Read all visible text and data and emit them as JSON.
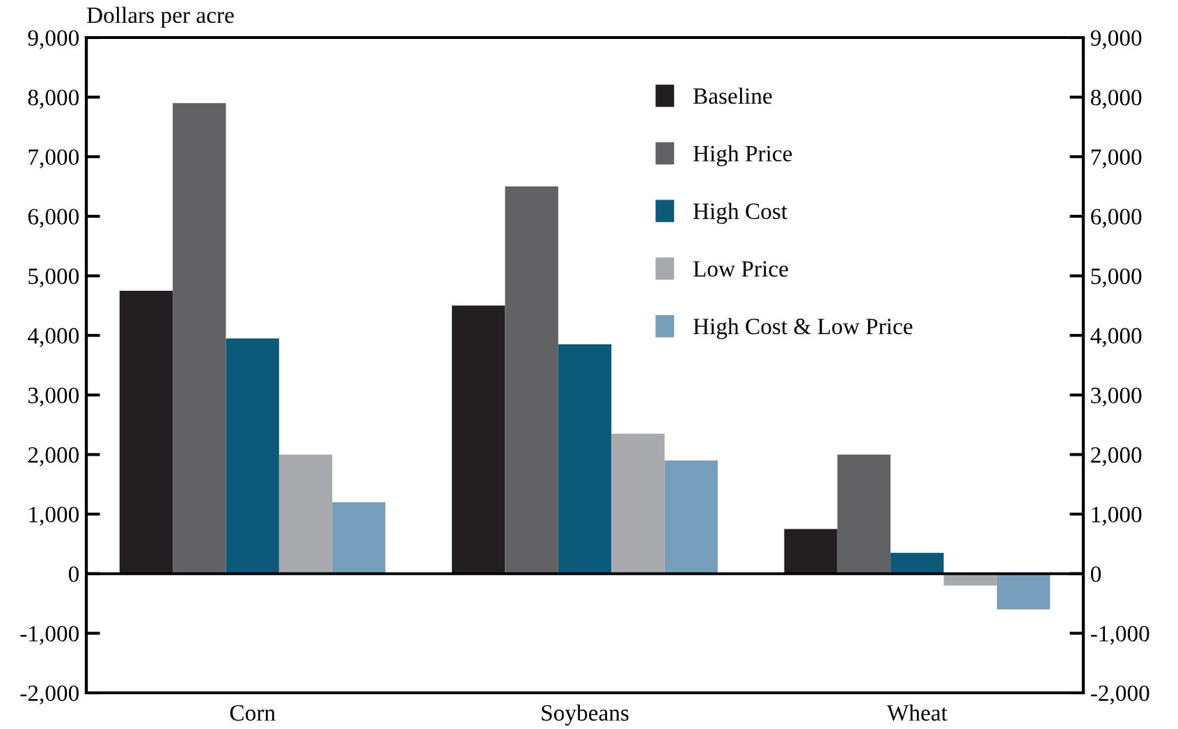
{
  "chart_data": {
    "type": "bar",
    "ylabel": "Dollars per acre",
    "categories": [
      "Corn",
      "Soybeans",
      "Wheat"
    ],
    "series": [
      {
        "name": "Baseline",
        "color": "#231f20",
        "values": [
          4750,
          4500,
          750
        ]
      },
      {
        "name": "High Price",
        "color": "#626264",
        "values": [
          7900,
          6500,
          2000
        ]
      },
      {
        "name": "High Cost",
        "color": "#0b5a7a",
        "values": [
          3950,
          3850,
          350
        ]
      },
      {
        "name": "Low Price",
        "color": "#a7a9ac",
        "values": [
          2000,
          2350,
          -200
        ]
      },
      {
        "name": "High Cost & Low Price",
        "color": "#779fbb",
        "values": [
          1200,
          1900,
          -600
        ]
      }
    ],
    "ylim": [
      -2000,
      9000
    ],
    "yticks": [
      {
        "value": -2000,
        "label": "-2,000"
      },
      {
        "value": -1000,
        "label": "-1,000"
      },
      0,
      {
        "value": 1000,
        "label": "1,000"
      },
      {
        "value": 2000,
        "label": "2,000"
      },
      {
        "value": 3000,
        "label": "3,000"
      },
      {
        "value": 4000,
        "label": "4,000"
      },
      {
        "value": 5000,
        "label": "5,000"
      },
      {
        "value": 6000,
        "label": "6,000"
      },
      {
        "value": 7000,
        "label": "7,000"
      },
      {
        "value": 8000,
        "label": "8,000"
      },
      {
        "value": 9000,
        "label": "9,000"
      }
    ],
    "y2lim": [
      -2000,
      9000
    ],
    "y2ticks": [
      {
        "value": -2000,
        "label": "-2,000"
      },
      {
        "value": -1000,
        "label": "-1,000"
      },
      0,
      {
        "value": 1000,
        "label": "1,000"
      },
      {
        "value": 2000,
        "label": "2,000"
      },
      {
        "value": 3000,
        "label": "3,000"
      },
      {
        "value": 4000,
        "label": "4,000"
      },
      {
        "value": 5000,
        "label": "5,000"
      },
      {
        "value": 6000,
        "label": "6,000"
      },
      {
        "value": 7000,
        "label": "7,000"
      },
      {
        "value": 8000,
        "label": "8,000"
      },
      {
        "value": 9000,
        "label": "9,000"
      }
    ],
    "ref_lines": [
      {
        "axis": "y",
        "value": 0,
        "color": "#000000"
      }
    ],
    "grid": false,
    "legend": "top right"
  }
}
